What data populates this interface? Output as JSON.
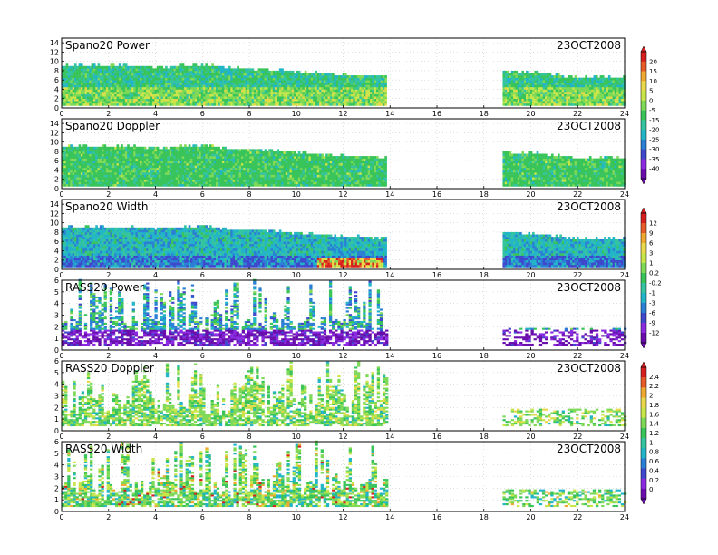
{
  "figure": {
    "date": "23OCT2008"
  },
  "colorbars": [
    {
      "name": "power",
      "ticks": [
        "20",
        "15",
        "10",
        "5",
        "0",
        "-5",
        "-15",
        "-20",
        "-25",
        "-30",
        "-35",
        "-40"
      ]
    },
    {
      "name": "width",
      "ticks": [
        "12",
        "9",
        "6",
        "3",
        "1",
        "0.2",
        "-0.2",
        "-1",
        "-3",
        "-6",
        "-9",
        "-12"
      ]
    },
    {
      "name": "doppler",
      "ticks": [
        "2.4",
        "2.2",
        "2",
        "1.8",
        "1.6",
        "1.4",
        "1.2",
        "1",
        "0.8",
        "0.6",
        "0.4",
        "0.2",
        "0"
      ]
    }
  ],
  "palette": [
    "#6a0dad",
    "#8a2be2",
    "#3f48cc",
    "#2b7fd4",
    "#22b5c8",
    "#35c4a0",
    "#39c45a",
    "#7ed957",
    "#c8e64a",
    "#e8d84a",
    "#f0a830",
    "#e85a28",
    "#d62020"
  ],
  "chart_data": [
    {
      "type": "heatmap",
      "title": "Spano20 Power",
      "date": "23OCT2008",
      "x_ticks": [
        "0",
        "2",
        "4",
        "6",
        "8",
        "10",
        "12",
        "14",
        "16",
        "18",
        "20",
        "22",
        "24"
      ],
      "y_ticks": [
        "0",
        "2",
        "4",
        "6",
        "8",
        "10",
        "12",
        "14"
      ],
      "xlim": [
        0,
        24
      ],
      "ylim": [
        0,
        15
      ],
      "coverage": [
        {
          "from": 0,
          "to": 13.8
        },
        {
          "from": 18.8,
          "to": 24
        }
      ],
      "echo_top": [
        [
          0,
          8.8
        ],
        [
          1.5,
          9
        ],
        [
          3,
          8.8
        ],
        [
          4.5,
          8.6
        ],
        [
          6,
          9.2
        ],
        [
          7,
          8.4
        ],
        [
          9,
          8
        ],
        [
          11,
          7.2
        ],
        [
          12.5,
          6.8
        ],
        [
          13.8,
          6.6
        ],
        [
          18.8,
          7.8
        ],
        [
          20.5,
          7.2
        ],
        [
          22,
          6.4
        ],
        [
          24,
          6.4
        ]
      ],
      "color_scale": "power"
    },
    {
      "type": "heatmap",
      "title": "Spano20 Doppler",
      "date": "23OCT2008",
      "x_ticks": [
        "0",
        "2",
        "4",
        "6",
        "8",
        "10",
        "12",
        "14",
        "16",
        "18",
        "20",
        "22",
        "24"
      ],
      "y_ticks": [
        "0",
        "2",
        "4",
        "6",
        "8",
        "10",
        "12",
        "14"
      ],
      "xlim": [
        0,
        24
      ],
      "ylim": [
        0,
        15
      ],
      "coverage": [
        {
          "from": 0,
          "to": 13.8
        },
        {
          "from": 18.8,
          "to": 24
        }
      ],
      "echo_top": [
        [
          0,
          8.8
        ],
        [
          1.5,
          9
        ],
        [
          3,
          8.8
        ],
        [
          4.5,
          8.6
        ],
        [
          6,
          9.2
        ],
        [
          7,
          8.4
        ],
        [
          9,
          8
        ],
        [
          11,
          7.2
        ],
        [
          12.5,
          6.8
        ],
        [
          13.8,
          6.6
        ],
        [
          18.8,
          7.8
        ],
        [
          20.5,
          7.2
        ],
        [
          22,
          6.4
        ],
        [
          24,
          6.4
        ]
      ],
      "color_scale": "power"
    },
    {
      "type": "heatmap",
      "title": "Spano20 Width",
      "date": "23OCT2008",
      "x_ticks": [
        "0",
        "2",
        "4",
        "6",
        "8",
        "10",
        "12",
        "14",
        "16",
        "18",
        "20",
        "22",
        "24"
      ],
      "y_ticks": [
        "0",
        "2",
        "4",
        "6",
        "8",
        "10",
        "12",
        "14"
      ],
      "xlim": [
        0,
        24
      ],
      "ylim": [
        0,
        15
      ],
      "coverage": [
        {
          "from": 0,
          "to": 13.8
        },
        {
          "from": 18.8,
          "to": 24
        }
      ],
      "echo_top": [
        [
          0,
          8.8
        ],
        [
          1.5,
          9
        ],
        [
          3,
          8.8
        ],
        [
          4.5,
          8.6
        ],
        [
          6,
          9.2
        ],
        [
          7,
          8.4
        ],
        [
          9,
          8
        ],
        [
          11,
          7.2
        ],
        [
          12.5,
          6.8
        ],
        [
          13.8,
          6.6
        ],
        [
          18.8,
          7.8
        ],
        [
          20.5,
          7.2
        ],
        [
          22,
          6.4
        ],
        [
          24,
          6.4
        ]
      ],
      "color_scale": "width"
    },
    {
      "type": "heatmap",
      "title": "RASS20 Power",
      "date": "23OCT2008",
      "x_ticks": [
        "0",
        "2",
        "4",
        "6",
        "8",
        "10",
        "12",
        "14",
        "16",
        "18",
        "20",
        "22",
        "24"
      ],
      "y_ticks": [
        "0",
        "1",
        "2",
        "3",
        "4",
        "5",
        "6"
      ],
      "xlim": [
        0,
        24
      ],
      "ylim": [
        0,
        6
      ],
      "coverage": [
        {
          "from": 0,
          "to": 13.8
        },
        {
          "from": 18.8,
          "to": 24
        }
      ],
      "color_scale": "power"
    },
    {
      "type": "heatmap",
      "title": "RASS20 Doppler",
      "date": "23OCT2008",
      "x_ticks": [
        "0",
        "2",
        "4",
        "6",
        "8",
        "10",
        "12",
        "14",
        "16",
        "18",
        "20",
        "22",
        "24"
      ],
      "y_ticks": [
        "0",
        "1",
        "2",
        "3",
        "4",
        "5",
        "6"
      ],
      "xlim": [
        0,
        24
      ],
      "ylim": [
        0,
        6
      ],
      "coverage": [
        {
          "from": 0,
          "to": 13.8
        },
        {
          "from": 18.8,
          "to": 24
        }
      ],
      "color_scale": "doppler"
    },
    {
      "type": "heatmap",
      "title": "RASS20 Width",
      "date": "23OCT2008",
      "x_ticks": [
        "0",
        "2",
        "4",
        "6",
        "8",
        "10",
        "12",
        "14",
        "16",
        "18",
        "20",
        "22",
        "24"
      ],
      "y_ticks": [
        "0",
        "1",
        "2",
        "3",
        "4",
        "5",
        "6"
      ],
      "xlim": [
        0,
        24
      ],
      "ylim": [
        0,
        6
      ],
      "coverage": [
        {
          "from": 0,
          "to": 13.8
        },
        {
          "from": 18.8,
          "to": 24
        }
      ],
      "color_scale": "doppler"
    }
  ]
}
